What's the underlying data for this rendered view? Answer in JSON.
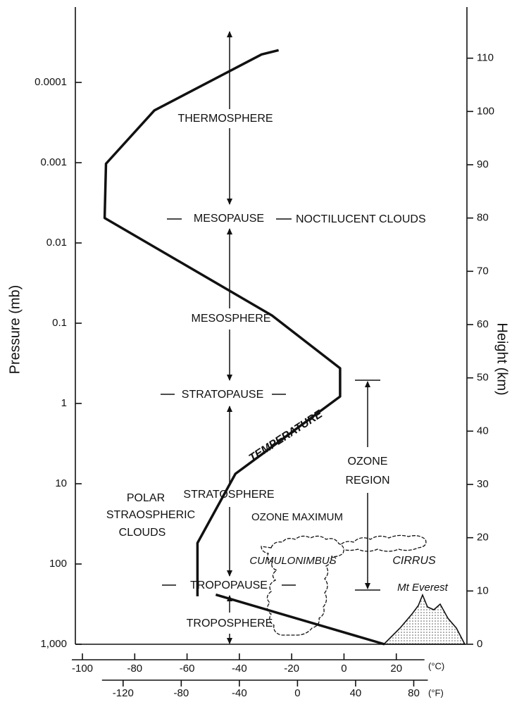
{
  "chart_data": {
    "type": "line",
    "y_label": "Height (km)",
    "y2_label": "Pressure (mb)",
    "x_unit": "(°C)",
    "x2_unit": "(°F)",
    "xlim": [
      -102.7,
      47
    ],
    "xticks": [
      -100,
      -80,
      -60,
      -40,
      -20,
      0,
      20
    ],
    "x2ticks": [
      -120,
      -80,
      -40,
      0,
      40,
      80
    ],
    "ylim": [
      0,
      119.6
    ],
    "yticks": [
      0,
      10,
      20,
      30,
      40,
      50,
      60,
      70,
      80,
      90,
      100,
      110
    ],
    "y2lim": [
      1000,
      1.15e-05
    ],
    "y2_log": true,
    "y2ticks": [
      0.0001,
      0.001,
      0.01,
      0.1,
      1,
      10,
      100,
      {
        "value": 1000,
        "label": "1,000"
      }
    ],
    "series": [
      {
        "name": "TEMPERATURE",
        "color": "#111111",
        "x": [
          -25,
          -31.5,
          -72.5,
          -91,
          -91.5,
          -27.5,
          -1.5,
          -1.5,
          -41.5,
          -56,
          -56,
          null,
          -49,
          15.5
        ],
        "values": [
          111.5,
          110.7,
          100.2,
          90.2,
          80,
          61.7,
          51.8,
          46.5,
          32,
          19,
          9,
          null,
          9.3,
          0
        ]
      }
    ],
    "annotations": {
      "thermosphere": "THERMOSPHERE",
      "mesopause": "MESOPAUSE",
      "noctilucent": "NOCTILUCENT CLOUDS",
      "mesosphere": "MESOSPHERE",
      "stratopause": "STRATOPAUSE",
      "ozone_region": [
        "OZONE",
        "REGION"
      ],
      "polar_clouds": [
        "POLAR",
        "STRAOSPHERIC",
        "CLOUDS"
      ],
      "stratosphere": "STRATOSPHERE",
      "ozone_maximum": "OZONE MAXIMUM",
      "cumulonimbus": "CUMULONIMBUS",
      "cirrus": "CIRRUS",
      "tropopause": "TROPOPAUSE",
      "everest": "Mt Everest",
      "troposphere": "TROPOSPHERE"
    }
  }
}
